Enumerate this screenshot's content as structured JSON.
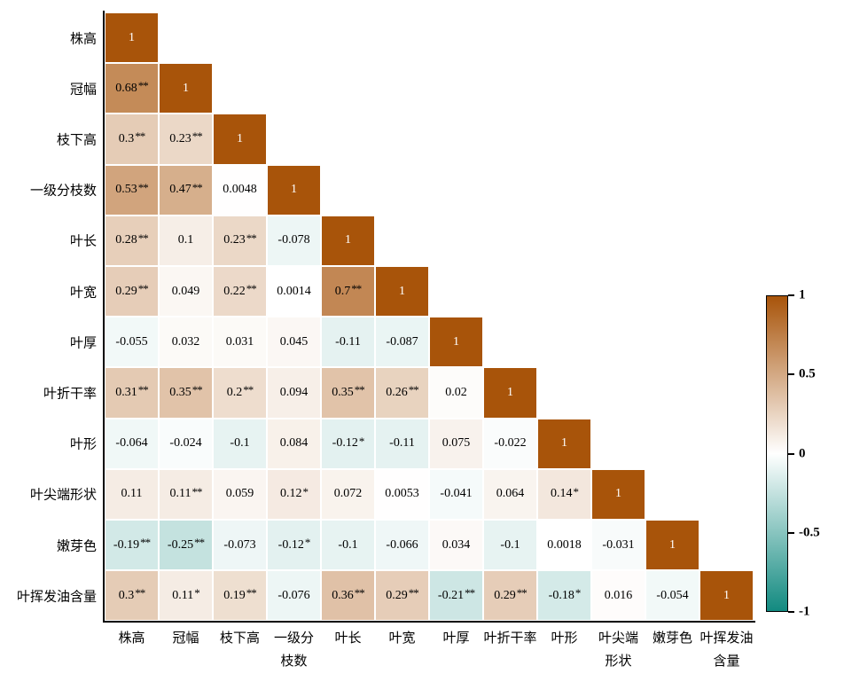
{
  "chart_data": {
    "type": "heatmap",
    "title": "",
    "description": "Lower-triangular correlation matrix heatmap with significance stars",
    "row_labels": [
      "株高",
      "冠幅",
      "枝下高",
      "一级分枝数",
      "叶长",
      "叶宽",
      "叶厚",
      "叶折干率",
      "叶形",
      "叶尖端形状",
      "嫩芽色",
      "叶挥发油含量"
    ],
    "col_labels": [
      [
        "株高"
      ],
      [
        "冠幅"
      ],
      [
        "枝下高"
      ],
      [
        "一级分",
        "枝数"
      ],
      [
        "叶长"
      ],
      [
        "叶宽"
      ],
      [
        "叶厚"
      ],
      [
        "叶折干率"
      ],
      [
        "叶形"
      ],
      [
        "叶尖端",
        "形状"
      ],
      [
        "嫩芽色"
      ],
      [
        "叶挥发油",
        "含量"
      ]
    ],
    "cells": [
      [
        {
          "d": "1",
          "s": ""
        }
      ],
      [
        {
          "d": "0.68",
          "s": "**"
        },
        {
          "d": "1",
          "s": ""
        }
      ],
      [
        {
          "d": "0.3",
          "s": "**"
        },
        {
          "d": "0.23",
          "s": "**"
        },
        {
          "d": "1",
          "s": ""
        }
      ],
      [
        {
          "d": "0.53",
          "s": "**"
        },
        {
          "d": "0.47",
          "s": "**"
        },
        {
          "d": "0.0048",
          "s": ""
        },
        {
          "d": "1",
          "s": ""
        }
      ],
      [
        {
          "d": "0.28",
          "s": "**"
        },
        {
          "d": "0.1",
          "s": ""
        },
        {
          "d": "0.23",
          "s": "**"
        },
        {
          "d": "-0.078",
          "s": ""
        },
        {
          "d": "1",
          "s": ""
        }
      ],
      [
        {
          "d": "0.29",
          "s": "**"
        },
        {
          "d": "0.049",
          "s": ""
        },
        {
          "d": "0.22",
          "s": "**"
        },
        {
          "d": "0.0014",
          "s": ""
        },
        {
          "d": "0.7",
          "s": "**"
        },
        {
          "d": "1",
          "s": ""
        }
      ],
      [
        {
          "d": "-0.055",
          "s": ""
        },
        {
          "d": "0.032",
          "s": ""
        },
        {
          "d": "0.031",
          "s": ""
        },
        {
          "d": "0.045",
          "s": ""
        },
        {
          "d": "-0.11",
          "s": ""
        },
        {
          "d": "-0.087",
          "s": ""
        },
        {
          "d": "1",
          "s": ""
        }
      ],
      [
        {
          "d": "0.31",
          "s": "**"
        },
        {
          "d": "0.35",
          "s": "**"
        },
        {
          "d": "0.2",
          "s": "**"
        },
        {
          "d": "0.094",
          "s": ""
        },
        {
          "d": "0.35",
          "s": "**"
        },
        {
          "d": "0.26",
          "s": "**"
        },
        {
          "d": "0.02",
          "s": ""
        },
        {
          "d": "1",
          "s": ""
        }
      ],
      [
        {
          "d": "-0.064",
          "s": ""
        },
        {
          "d": "-0.024",
          "s": ""
        },
        {
          "d": "-0.1",
          "s": ""
        },
        {
          "d": "0.084",
          "s": ""
        },
        {
          "d": "-0.12",
          "s": "*"
        },
        {
          "d": "-0.11",
          "s": ""
        },
        {
          "d": "0.075",
          "s": ""
        },
        {
          "d": "-0.022",
          "s": ""
        },
        {
          "d": "1",
          "s": ""
        }
      ],
      [
        {
          "d": "0.11",
          "s": ""
        },
        {
          "d": "0.11",
          "s": "**"
        },
        {
          "d": "0.059",
          "s": ""
        },
        {
          "d": "0.12",
          "s": "*"
        },
        {
          "d": "0.072",
          "s": ""
        },
        {
          "d": "0.0053",
          "s": ""
        },
        {
          "d": "-0.041",
          "s": ""
        },
        {
          "d": "0.064",
          "s": ""
        },
        {
          "d": "0.14",
          "s": "*"
        },
        {
          "d": "1",
          "s": ""
        }
      ],
      [
        {
          "d": "-0.19",
          "s": "**"
        },
        {
          "d": "-0.25",
          "s": "**"
        },
        {
          "d": "-0.073",
          "s": ""
        },
        {
          "d": "-0.12",
          "s": "*"
        },
        {
          "d": "-0.1",
          "s": ""
        },
        {
          "d": "-0.066",
          "s": ""
        },
        {
          "d": "0.034",
          "s": ""
        },
        {
          "d": "-0.1",
          "s": ""
        },
        {
          "d": "0.0018",
          "s": ""
        },
        {
          "d": "-0.031",
          "s": ""
        },
        {
          "d": "1",
          "s": ""
        }
      ],
      [
        {
          "d": "0.3",
          "s": "**"
        },
        {
          "d": "0.11",
          "s": "*"
        },
        {
          "d": "0.19",
          "s": "**"
        },
        {
          "d": "-0.076",
          "s": ""
        },
        {
          "d": "0.36",
          "s": "**"
        },
        {
          "d": "0.29",
          "s": "**"
        },
        {
          "d": "-0.21",
          "s": "**"
        },
        {
          "d": "0.29",
          "s": "**"
        },
        {
          "d": "-0.18",
          "s": "*"
        },
        {
          "d": "0.016",
          "s": ""
        },
        {
          "d": "-0.054",
          "s": ""
        },
        {
          "d": "1",
          "s": ""
        }
      ]
    ],
    "value_range": [
      -1,
      1
    ],
    "legend_position": "right",
    "colorbar": {
      "ticks": [
        {
          "v": 1,
          "label": "1"
        },
        {
          "v": 0.5,
          "label": "0.5"
        },
        {
          "v": 0,
          "label": "0"
        },
        {
          "v": -0.5,
          "label": "-0.5"
        },
        {
          "v": -1,
          "label": "-1"
        }
      ],
      "max_color": "#a8540a",
      "mid_color": "#ffffff",
      "min_color": "#128a80"
    }
  }
}
